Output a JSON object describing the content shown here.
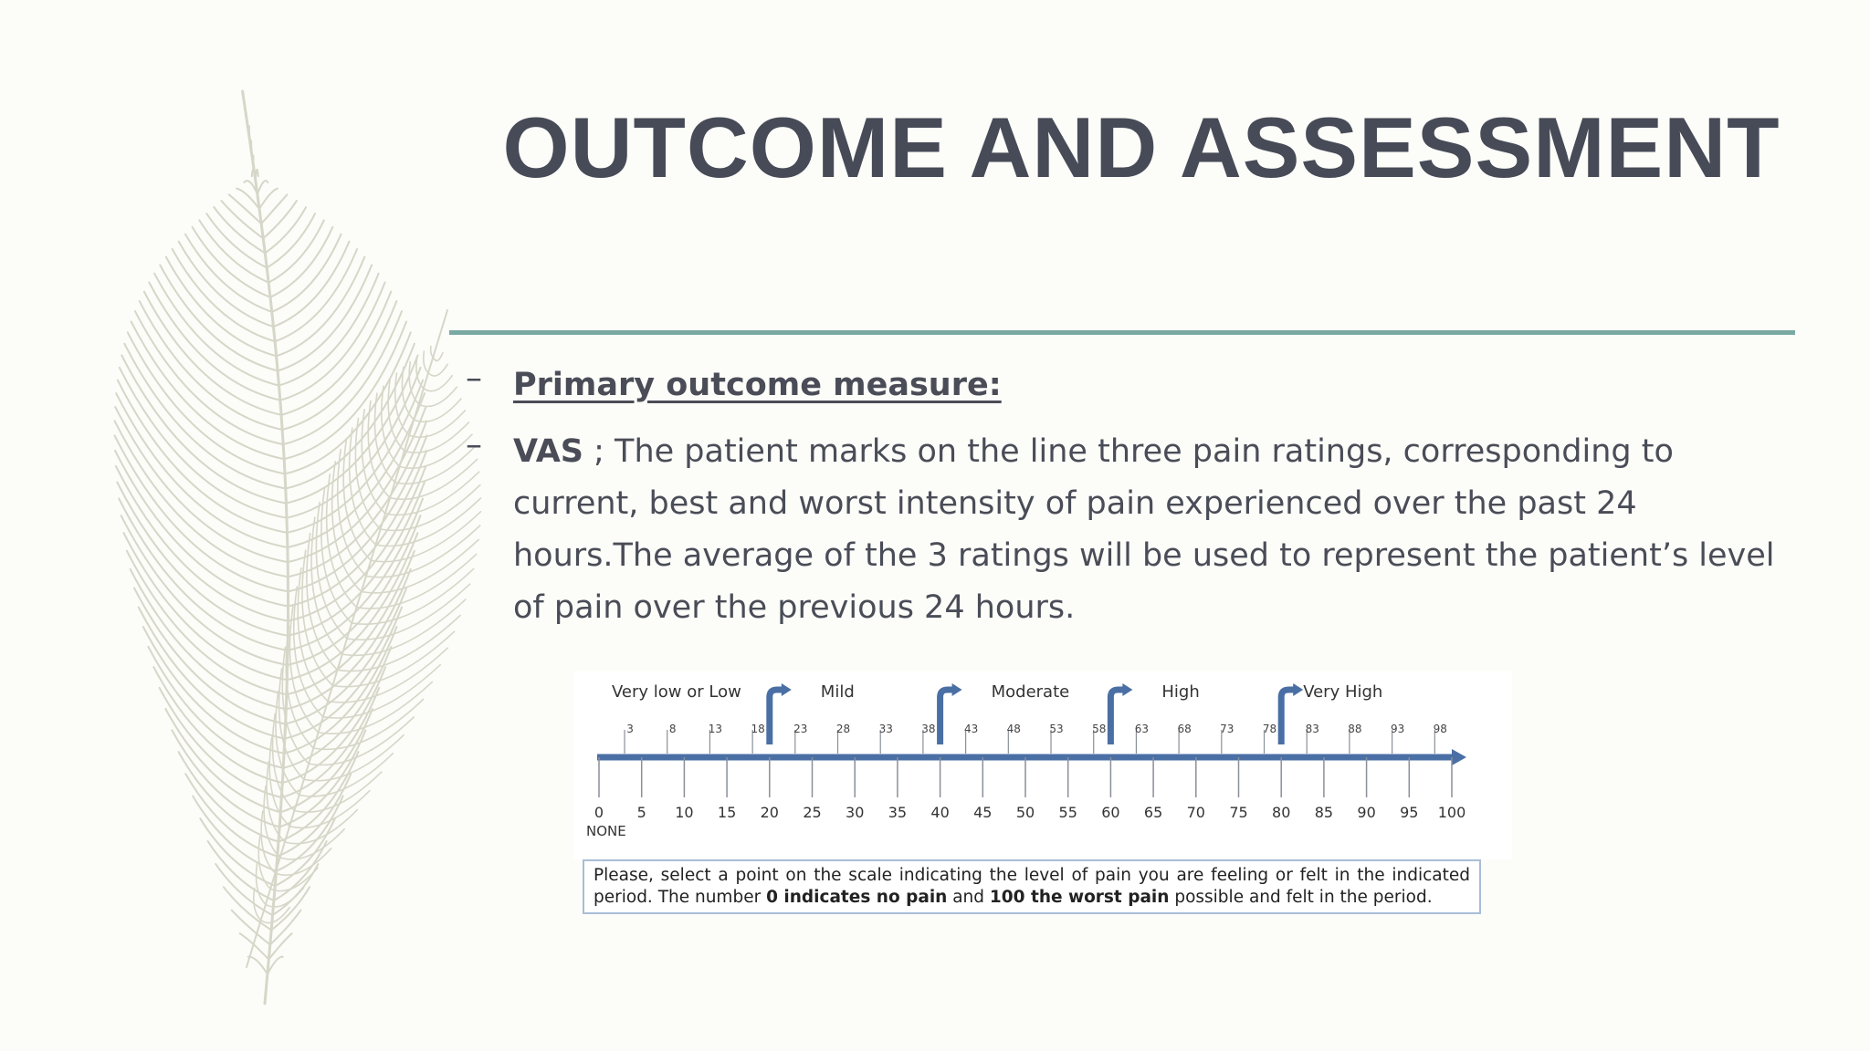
{
  "slide": {
    "title": "OUTCOME AND ASSESSMENT",
    "bullets": [
      {
        "dash": "–",
        "text": "Primary outcome measure:"
      },
      {
        "dash": "–",
        "lead": "VAS",
        "text": " ; The patient marks on the line three pain ratings, corresponding to current, best and worst intensity of pain experienced over the past 24 hours.The average of the 3 ratings will be used to represent the patient’s level of pain over the previous 24 hours."
      }
    ],
    "colors": {
      "title": "#474b57",
      "rule": "#7aa9a3",
      "scale": "#4a6fa5",
      "feather": "#d6d7c8"
    }
  },
  "vas_scale": {
    "categories": [
      {
        "label": "Very low or Low",
        "start": 0
      },
      {
        "label": "Mild",
        "start": 20
      },
      {
        "label": "Moderate",
        "start": 40
      },
      {
        "label": "High",
        "start": 60
      },
      {
        "label": "Very High",
        "start": 80
      }
    ],
    "major_ticks": [
      "0",
      "5",
      "10",
      "15",
      "20",
      "25",
      "30",
      "35",
      "40",
      "45",
      "50",
      "55",
      "60",
      "65",
      "70",
      "75",
      "80",
      "85",
      "90",
      "95",
      "100"
    ],
    "minor_ticks": [
      "3",
      "8",
      "13",
      "18",
      "23",
      "28",
      "33",
      "38",
      "43",
      "48",
      "53",
      "58",
      "63",
      "68",
      "73",
      "78",
      "83",
      "88",
      "93",
      "98"
    ],
    "none_label": "NONE",
    "note": {
      "part1": "Please, select a point on the scale indicating the level of pain you are feeling or felt in the indicated period. The number ",
      "bold1": "0 indicates no pain",
      "part2": " and ",
      "bold2": "100 the worst pain",
      "part3": " possible and felt in the period."
    }
  }
}
